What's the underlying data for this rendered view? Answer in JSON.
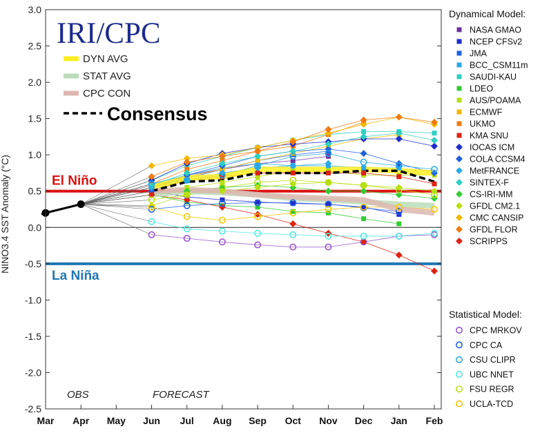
{
  "chart_data": {
    "type": "line",
    "ylabel": "NINO3.4 SST Anomaly (°C)",
    "ylim": [
      -2.5,
      3.0
    ],
    "yticks": [
      "3.0",
      "2.5",
      "2.0",
      "1.5",
      "1.0",
      "0.5",
      "0.0",
      "-0.5",
      "-1.0",
      "-1.5",
      "-2.0",
      "-2.5"
    ],
    "categories": [
      "Mar",
      "Apr",
      "May",
      "Jun",
      "Jul",
      "Aug",
      "Sep",
      "Oct",
      "Nov",
      "Dec",
      "Jan",
      "Feb"
    ],
    "logo": "IRI/CPC",
    "phase_labels": {
      "obs": "OBS",
      "forecast": "FORECAST"
    },
    "thresholds": [
      {
        "label": "El Niño",
        "value": 0.5,
        "color": "#dd1111"
      },
      {
        "label": "La Niña",
        "value": -0.5,
        "color": "#1f77b4"
      }
    ],
    "observed": {
      "x": [
        "Mar",
        "Apr"
      ],
      "values": [
        0.2,
        0.32
      ],
      "color": "#000000"
    },
    "averages": [
      {
        "name": "DYN AVG",
        "color": "#ffee22",
        "values": [
          0.55,
          0.68,
          0.7,
          0.8,
          0.8,
          0.8,
          0.8,
          0.78,
          0.75
        ]
      },
      {
        "name": "STAT AVG",
        "color": "#bbddbb",
        "values": [
          0.45,
          0.5,
          0.48,
          0.45,
          0.4,
          0.38,
          0.35,
          0.32,
          0.3
        ]
      },
      {
        "name": "CPC CON",
        "color": "#ddb8b0",
        "values": [
          0.5,
          0.52,
          0.5,
          0.45,
          0.42,
          0.4,
          0.38,
          0.25,
          0.2
        ]
      }
    ],
    "consensus": {
      "name": "Consensus",
      "values": [
        0.5,
        0.63,
        0.65,
        0.75,
        0.75,
        0.75,
        0.78,
        0.78,
        0.63
      ]
    },
    "dynamical_header": "Dynamical Model:",
    "statistical_header": "Statistical Model:",
    "dynamical_models": [
      {
        "name": "NASA GMAO",
        "color": "#7030a0",
        "marker": "square",
        "values": [
          0.55,
          0.72,
          0.8,
          0.88,
          0.92,
          0.98
        ]
      },
      {
        "name": "NCEP CFSv2",
        "color": "#1f2dcc",
        "marker": "square",
        "values": [
          0.5,
          0.42,
          0.38,
          0.35,
          0.33,
          0.32,
          0.28,
          0.18
        ]
      },
      {
        "name": "JMA",
        "color": "#2060e0",
        "marker": "square",
        "values": [
          0.55,
          0.68,
          0.8,
          0.92,
          1.0,
          1.05
        ]
      },
      {
        "name": "BCC_CSM11m",
        "color": "#29a9e8",
        "marker": "square",
        "values": [
          0.6,
          0.72,
          0.82,
          0.88,
          0.85,
          0.85,
          0.82,
          0.82
        ]
      },
      {
        "name": "SAUDI-KAU",
        "color": "#2ed0c0",
        "marker": "square",
        "values": [
          0.65,
          0.85,
          0.98,
          1.1,
          1.2,
          1.28,
          1.32,
          1.32,
          1.3
        ]
      },
      {
        "name": "LDEO",
        "color": "#33cc33",
        "marker": "square",
        "values": [
          0.45,
          0.35,
          0.3,
          0.28,
          0.22,
          0.2,
          0.12,
          0.05
        ]
      },
      {
        "name": "AUS/POAMA",
        "color": "#b8e010",
        "marker": "square",
        "values": [
          0.45,
          0.55,
          0.62,
          0.7,
          0.78,
          0.78,
          0.72,
          0.72,
          0.72
        ]
      },
      {
        "name": "ECMWF",
        "color": "#f5b800",
        "marker": "square",
        "values": [
          0.55,
          0.7,
          0.8,
          0.92,
          1.02,
          1.12,
          1.22,
          1.28
        ]
      },
      {
        "name": "UKMO",
        "color": "#f07a10",
        "marker": "square",
        "values": [
          0.6,
          0.8,
          0.92,
          1.05,
          1.12,
          1.28,
          1.45
        ]
      },
      {
        "name": "KMA SNU",
        "color": "#dd2211",
        "marker": "square",
        "values": [
          0.5,
          0.65,
          0.7,
          0.75,
          0.75,
          0.75,
          0.75,
          0.7,
          0.6
        ]
      },
      {
        "name": "IOCAS ICM",
        "color": "#1f2dcc",
        "marker": "diamond",
        "values": [
          0.65,
          0.88,
          1.02,
          1.1,
          1.15,
          1.18,
          1.22,
          1.22,
          1.12
        ]
      },
      {
        "name": "COLA CCSM4",
        "color": "#2060e0",
        "marker": "diamond",
        "values": [
          0.5,
          0.72,
          0.85,
          0.98,
          1.05,
          1.08,
          1.02,
          0.88,
          0.75
        ]
      },
      {
        "name": "MetFRANCE",
        "color": "#29a9e8",
        "marker": "diamond",
        "values": [
          0.55,
          0.65,
          0.75,
          0.82,
          0.85,
          0.88
        ]
      },
      {
        "name": "SINTEX-F",
        "color": "#2ed0c0",
        "marker": "diamond",
        "values": [
          0.58,
          0.75,
          0.88,
          0.98,
          1.05,
          1.15,
          1.25,
          1.3,
          1.2
        ]
      },
      {
        "name": "CS-IRI-MM",
        "color": "#33cc33",
        "marker": "diamond",
        "values": [
          0.45,
          0.5,
          0.55,
          0.58,
          0.55,
          0.5,
          0.5,
          0.45,
          0.4
        ]
      },
      {
        "name": "GFDL CM2.1",
        "color": "#b8e010",
        "marker": "diamond",
        "values": [
          0.3,
          0.45,
          0.5,
          0.55,
          0.6,
          0.62,
          0.58,
          0.55,
          0.5
        ]
      },
      {
        "name": "CMC CANSIP",
        "color": "#f5b800",
        "marker": "diamond",
        "values": [
          0.85,
          0.95,
          1.0,
          1.1,
          1.2,
          1.3,
          1.42,
          1.52,
          1.42
        ]
      },
      {
        "name": "GFDL FLOR",
        "color": "#f07a10",
        "marker": "diamond",
        "values": [
          0.7,
          0.9,
          0.98,
          1.05,
          1.18,
          1.35,
          1.48,
          1.52,
          1.45
        ]
      },
      {
        "name": "SCRIPPS",
        "color": "#dd2211",
        "marker": "diamond",
        "values": [
          0.45,
          0.38,
          0.28,
          0.18,
          0.05,
          -0.08,
          -0.2,
          -0.38,
          -0.6
        ]
      }
    ],
    "statistical_models": [
      {
        "name": "CPC MRKOV",
        "color": "#9955cc",
        "values": [
          -0.1,
          -0.15,
          -0.2,
          -0.24,
          -0.27,
          -0.27,
          -0.2,
          -0.12,
          -0.1
        ]
      },
      {
        "name": "CPC CA",
        "color": "#2060e0",
        "values": [
          0.25,
          0.3,
          0.33,
          0.34,
          0.34,
          0.32,
          0.27,
          0.22
        ]
      },
      {
        "name": "CSU CLIPR",
        "color": "#29a9e8",
        "values": [
          0.6,
          0.65,
          0.72,
          0.85,
          0.98,
          1.02,
          0.9,
          0.85,
          0.8
        ]
      },
      {
        "name": "UBC NNET",
        "color": "#55e8e0",
        "values": [
          0.08,
          -0.02,
          -0.05,
          -0.08,
          -0.1,
          -0.12,
          -0.12,
          -0.12,
          -0.08
        ]
      },
      {
        "name": "FSU REGR",
        "color": "#b8e010",
        "values": [
          0.38,
          0.45,
          0.55,
          0.62,
          0.65,
          0.62,
          0.58,
          0.52,
          0.45
        ]
      },
      {
        "name": "UCLA-TCD",
        "color": "#f5c800",
        "values": [
          0.28,
          0.15,
          0.1,
          0.15,
          0.2,
          0.25,
          0.28,
          0.28,
          0.25
        ]
      }
    ]
  }
}
